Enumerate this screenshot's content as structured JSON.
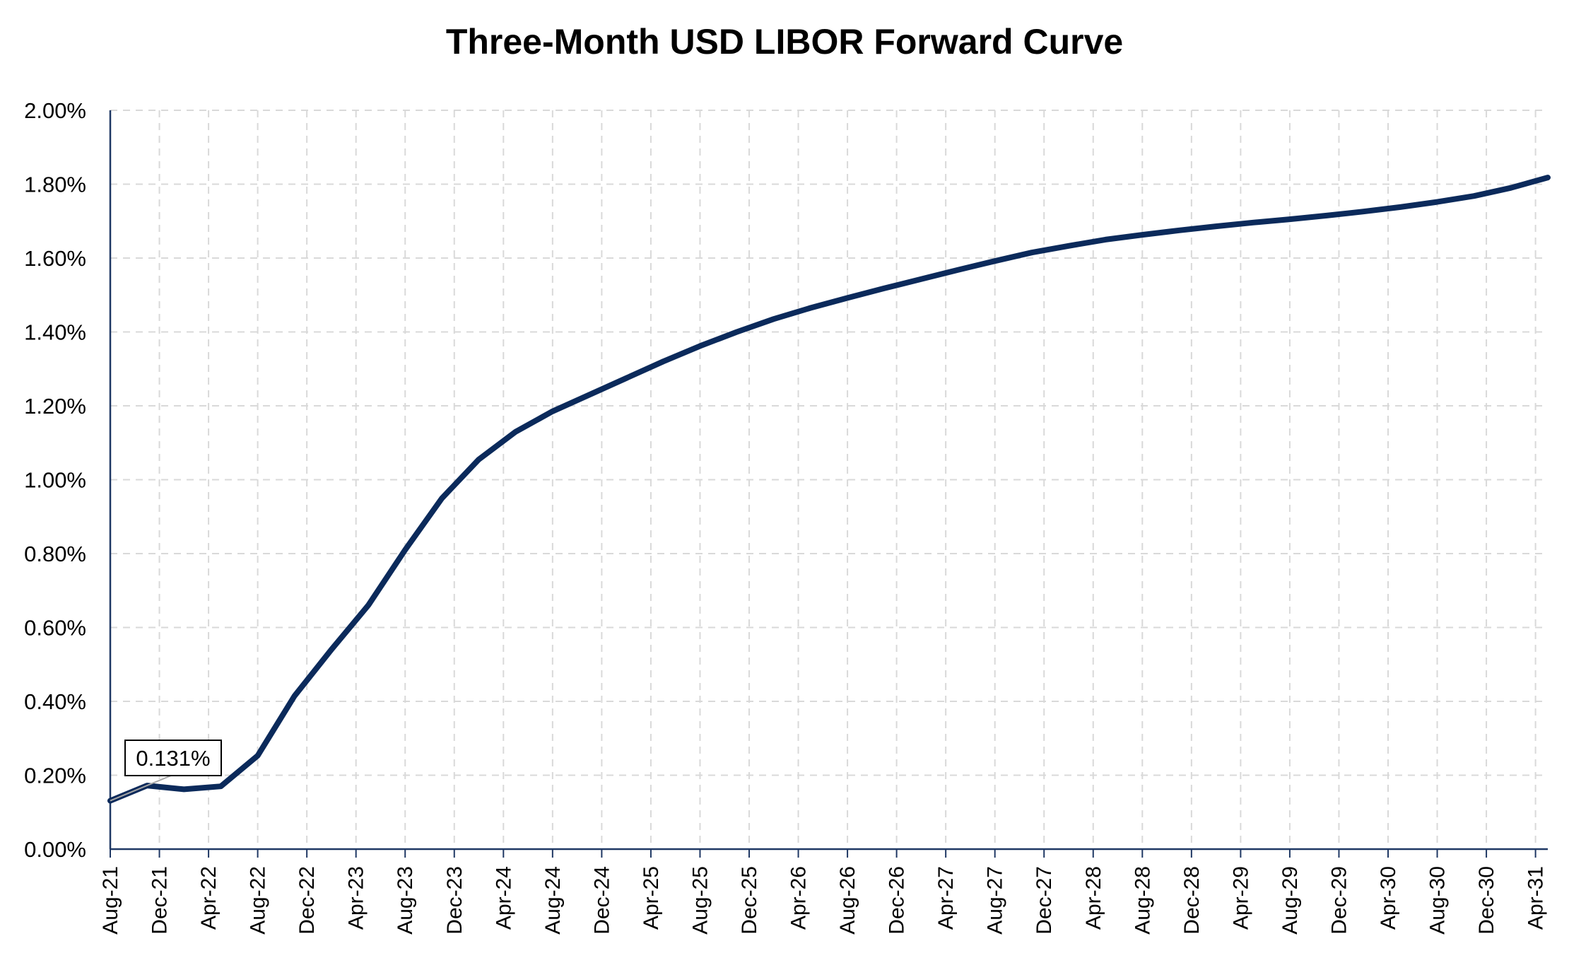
{
  "chart_data": {
    "type": "line",
    "title": "Three-Month USD LIBOR Forward Curve",
    "xlabel": "",
    "ylabel": "",
    "ylim": [
      0,
      2.0
    ],
    "yticks": [
      "0.00%",
      "0.20%",
      "0.40%",
      "0.60%",
      "0.80%",
      "1.00%",
      "1.20%",
      "1.40%",
      "1.60%",
      "1.80%",
      "2.00%"
    ],
    "xticks": [
      "Aug-21",
      "Dec-21",
      "Apr-22",
      "Aug-22",
      "Dec-22",
      "Apr-23",
      "Aug-23",
      "Dec-23",
      "Apr-24",
      "Aug-24",
      "Dec-24",
      "Apr-25",
      "Aug-25",
      "Dec-25",
      "Apr-26",
      "Aug-26",
      "Dec-26",
      "Apr-27",
      "Aug-27",
      "Dec-27",
      "Apr-28",
      "Aug-28",
      "Dec-28",
      "Apr-29",
      "Aug-29",
      "Dec-29",
      "Apr-30",
      "Aug-30",
      "Dec-30",
      "Apr-31"
    ],
    "grid": true,
    "line_color": "#0b2a5b",
    "annotation": {
      "text": "0.131%",
      "x": "Aug-21",
      "y": 0.131
    },
    "series": [
      {
        "x": [
          "Aug-21",
          "Nov-21",
          "Feb-22",
          "May-22",
          "Aug-22",
          "Nov-22",
          "Feb-23",
          "May-23",
          "Aug-23",
          "Nov-23",
          "Feb-24",
          "May-24",
          "Aug-24",
          "Nov-24",
          "Feb-25",
          "May-25",
          "Aug-25",
          "Nov-25",
          "Feb-26",
          "May-26",
          "Aug-26",
          "Nov-26",
          "Feb-27",
          "May-27",
          "Aug-27",
          "Nov-27",
          "Feb-28",
          "May-28",
          "Aug-28",
          "Nov-28",
          "Feb-29",
          "May-29",
          "Aug-29",
          "Nov-29",
          "Feb-30",
          "May-30",
          "Aug-30",
          "Nov-30",
          "Feb-31",
          "May-31"
        ],
        "values": [
          0.131,
          0.172,
          0.162,
          0.17,
          0.253,
          0.415,
          0.54,
          0.66,
          0.81,
          0.95,
          1.055,
          1.13,
          1.185,
          1.23,
          1.275,
          1.32,
          1.362,
          1.4,
          1.435,
          1.465,
          1.492,
          1.518,
          1.543,
          1.568,
          1.592,
          1.615,
          1.633,
          1.65,
          1.663,
          1.675,
          1.686,
          1.696,
          1.705,
          1.715,
          1.726,
          1.738,
          1.752,
          1.768,
          1.79,
          1.818
        ]
      }
    ]
  }
}
